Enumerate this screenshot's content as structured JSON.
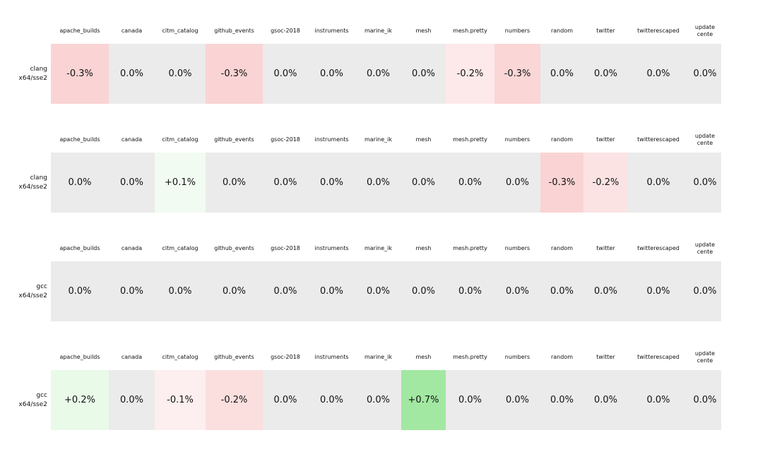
{
  "figure": {
    "background": "#ffffff",
    "zero_color": "#ebebeb",
    "negative_strong_color": "#fad4d4",
    "positive_strong_color": "#a2e8a2"
  },
  "columns": [
    "apache_builds",
    "canada",
    "citm_catalog",
    "github_events",
    "gsoc-2018",
    "instruments",
    "marine_ik",
    "mesh",
    "mesh.pretty",
    "numbers",
    "random",
    "twitter",
    "twitterescaped",
    "update\ncente"
  ],
  "sections": [
    {
      "label": "clang\nx64/sse2",
      "cells": [
        {
          "value": "-0.3%",
          "color": "#fad4d4"
        },
        {
          "value": "0.0%",
          "color": "#ebebeb"
        },
        {
          "value": "0.0%",
          "color": "#ebebeb"
        },
        {
          "value": "-0.3%",
          "color": "#fad4d4"
        },
        {
          "value": "0.0%",
          "color": "#ebebeb"
        },
        {
          "value": "0.0%",
          "color": "#ebebeb"
        },
        {
          "value": "0.0%",
          "color": "#ebebeb"
        },
        {
          "value": "0.0%",
          "color": "#ebebeb"
        },
        {
          "value": "-0.2%",
          "color": "#fde9e9"
        },
        {
          "value": "-0.3%",
          "color": "#fad6d6"
        },
        {
          "value": "0.0%",
          "color": "#ebebeb"
        },
        {
          "value": "0.0%",
          "color": "#ebebeb"
        },
        {
          "value": "0.0%",
          "color": "#ebebeb"
        },
        {
          "value": "0.0%",
          "color": "#ebebeb"
        }
      ]
    },
    {
      "label": "clang\nx64/sse2",
      "cells": [
        {
          "value": "0.0%",
          "color": "#ebebeb"
        },
        {
          "value": "0.0%",
          "color": "#ebebeb"
        },
        {
          "value": "+0.1%",
          "color": "#f2fbf2"
        },
        {
          "value": "0.0%",
          "color": "#ebebeb"
        },
        {
          "value": "0.0%",
          "color": "#ebebeb"
        },
        {
          "value": "0.0%",
          "color": "#ebebeb"
        },
        {
          "value": "0.0%",
          "color": "#ebebeb"
        },
        {
          "value": "0.0%",
          "color": "#ebebeb"
        },
        {
          "value": "0.0%",
          "color": "#ebebeb"
        },
        {
          "value": "0.0%",
          "color": "#ebebeb"
        },
        {
          "value": "-0.3%",
          "color": "#fad4d4"
        },
        {
          "value": "-0.2%",
          "color": "#fce3e3"
        },
        {
          "value": "0.0%",
          "color": "#ebebeb"
        },
        {
          "value": "0.0%",
          "color": "#ebebeb"
        }
      ]
    },
    {
      "label": "gcc\nx64/sse2",
      "cells": [
        {
          "value": "0.0%",
          "color": "#ebebeb"
        },
        {
          "value": "0.0%",
          "color": "#ebebeb"
        },
        {
          "value": "0.0%",
          "color": "#ebebeb"
        },
        {
          "value": "0.0%",
          "color": "#ebebeb"
        },
        {
          "value": "0.0%",
          "color": "#ebebeb"
        },
        {
          "value": "0.0%",
          "color": "#ebebeb"
        },
        {
          "value": "0.0%",
          "color": "#ebebeb"
        },
        {
          "value": "0.0%",
          "color": "#ebebeb"
        },
        {
          "value": "0.0%",
          "color": "#ebebeb"
        },
        {
          "value": "0.0%",
          "color": "#ebebeb"
        },
        {
          "value": "0.0%",
          "color": "#ebebeb"
        },
        {
          "value": "0.0%",
          "color": "#ebebeb"
        },
        {
          "value": "0.0%",
          "color": "#ebebeb"
        },
        {
          "value": "0.0%",
          "color": "#ebebeb"
        }
      ]
    },
    {
      "label": "gcc\nx64/sse2",
      "cells": [
        {
          "value": "+0.2%",
          "color": "#e9fae9"
        },
        {
          "value": "0.0%",
          "color": "#ebebeb"
        },
        {
          "value": "-0.1%",
          "color": "#fdefef"
        },
        {
          "value": "-0.2%",
          "color": "#fbdfdf"
        },
        {
          "value": "0.0%",
          "color": "#ebebeb"
        },
        {
          "value": "0.0%",
          "color": "#ebebeb"
        },
        {
          "value": "0.0%",
          "color": "#ebebeb"
        },
        {
          "value": "+0.7%",
          "color": "#a2e8a2"
        },
        {
          "value": "0.0%",
          "color": "#ebebeb"
        },
        {
          "value": "0.0%",
          "color": "#ebebeb"
        },
        {
          "value": "0.0%",
          "color": "#ebebeb"
        },
        {
          "value": "0.0%",
          "color": "#ebebeb"
        },
        {
          "value": "0.0%",
          "color": "#ebebeb"
        },
        {
          "value": "0.0%",
          "color": "#ebebeb"
        }
      ]
    }
  ],
  "chart_data": {
    "type": "heatmap",
    "title": "",
    "unit": "%",
    "columns": [
      "apache_builds",
      "canada",
      "citm_catalog",
      "github_events",
      "gsoc-2018",
      "instruments",
      "marine_ik",
      "mesh",
      "mesh.pretty",
      "numbers",
      "random",
      "twitter",
      "twitterescaped",
      "update cente"
    ],
    "rows": [
      "clang x64/sse2",
      "clang x64/sse2",
      "gcc x64/sse2",
      "gcc x64/sse2"
    ],
    "values": [
      [
        -0.3,
        0.0,
        0.0,
        -0.3,
        0.0,
        0.0,
        0.0,
        0.0,
        -0.2,
        -0.3,
        0.0,
        0.0,
        0.0,
        0.0
      ],
      [
        0.0,
        0.0,
        0.1,
        0.0,
        0.0,
        0.0,
        0.0,
        0.0,
        0.0,
        0.0,
        -0.3,
        -0.2,
        0.0,
        0.0
      ],
      [
        0.0,
        0.0,
        0.0,
        0.0,
        0.0,
        0.0,
        0.0,
        0.0,
        0.0,
        0.0,
        0.0,
        0.0,
        0.0,
        0.0
      ],
      [
        0.2,
        0.0,
        -0.1,
        -0.2,
        0.0,
        0.0,
        0.0,
        0.7,
        0.0,
        0.0,
        0.0,
        0.0,
        0.0,
        0.0
      ]
    ],
    "color_scale": {
      "negative": "#fad4d4",
      "zero": "#ebebeb",
      "positive": "#a2e8a2"
    },
    "legend_position": "none",
    "grid": false
  }
}
